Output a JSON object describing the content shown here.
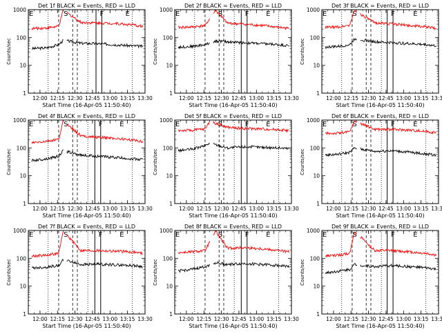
{
  "colors": {
    "events": "#000000",
    "lld": "#ff0000",
    "axis": "#000000",
    "background": "#ffffff"
  },
  "chart_data": [
    {
      "type": "line",
      "title": "Det 1f  BLACK = Events, RED = LLD",
      "xlabel": "Start Time (16-Apr-05 11:50:40)",
      "ylabel": "Counts/sec",
      "y_scale": "log",
      "ylim": [
        1,
        1000
      ],
      "xlim": [
        "11:50",
        "13:30"
      ],
      "x_ticks": [
        "12:00",
        "12:15",
        "12:30",
        "12:45",
        "13:00",
        "13:15",
        "13:30"
      ],
      "y_ticks": [
        "1",
        "10",
        "100",
        "1000"
      ],
      "markers": [
        {
          "label": "E",
          "time": "11:50"
        },
        {
          "label": "S",
          "time": "12:22"
        },
        {
          "label": "F",
          "time": "12:53"
        },
        {
          "label": "E",
          "time": "13:15"
        }
      ],
      "series": [
        {
          "color": "black",
          "x": [
            "11:53",
            "12:05",
            "12:16",
            "12:20",
            "12:35",
            "12:50",
            "13:05",
            "13:20",
            "13:28"
          ],
          "y": [
            40,
            42,
            55,
            80,
            62,
            60,
            55,
            50,
            48
          ]
        },
        {
          "color": "red",
          "x": [
            "11:53",
            "12:05",
            "12:16",
            "12:20",
            "12:35",
            "12:50",
            "13:05",
            "13:20",
            "13:28"
          ],
          "y": [
            210,
            220,
            250,
            950,
            350,
            330,
            320,
            280,
            250
          ]
        }
      ]
    },
    {
      "type": "line",
      "title": "Det 2f  BLACK = Events, RED = LLD",
      "xlabel": "Start Time (16-Apr-05 11:50:40)",
      "ylabel": "Counts/sec",
      "y_scale": "log",
      "ylim": [
        1,
        1000
      ],
      "xlim": [
        "11:50",
        "13:30"
      ],
      "x_ticks": [
        "12:00",
        "12:15",
        "12:30",
        "12:45",
        "13:00",
        "13:15",
        "13:30"
      ],
      "y_ticks": [
        "1",
        "10",
        "100",
        "1000"
      ],
      "markers": [
        {
          "label": "E",
          "time": "11:50"
        },
        {
          "label": "S",
          "time": "12:29"
        },
        {
          "label": "F",
          "time": "12:52"
        },
        {
          "label": "E",
          "time": "13:10"
        }
      ],
      "series": [
        {
          "color": "black",
          "x": [
            "11:53",
            "12:05",
            "12:16",
            "12:25",
            "12:35",
            "12:50",
            "13:05",
            "13:20",
            "13:28"
          ],
          "y": [
            45,
            48,
            55,
            75,
            70,
            65,
            60,
            55,
            50
          ]
        },
        {
          "color": "red",
          "x": [
            "11:53",
            "12:05",
            "12:16",
            "12:25",
            "12:35",
            "12:50",
            "13:05",
            "13:20",
            "13:28"
          ],
          "y": [
            230,
            240,
            270,
            950,
            330,
            300,
            270,
            230,
            210
          ]
        }
      ]
    },
    {
      "type": "line",
      "title": "Det 3f  BLACK = Events, RED = LLD",
      "xlabel": "Start Time (16-Apr-05 11:50:40)",
      "ylabel": "Counts/sec",
      "y_scale": "log",
      "ylim": [
        1,
        1000
      ],
      "xlim": [
        "11:50",
        "13:30"
      ],
      "x_ticks": [
        "12:00",
        "12:15",
        "12:30",
        "12:45",
        "13:00",
        "13:15",
        "13:30"
      ],
      "y_ticks": [
        "1",
        "10",
        "100",
        "1000"
      ],
      "markers": [
        {
          "label": "E",
          "time": "11:50"
        },
        {
          "label": "S",
          "time": "12:18"
        },
        {
          "label": "F",
          "time": "12:51"
        },
        {
          "label": "E",
          "time": "13:10"
        }
      ],
      "series": [
        {
          "color": "black",
          "x": [
            "11:53",
            "12:05",
            "12:14",
            "12:18",
            "12:35",
            "12:50",
            "13:05",
            "13:20",
            "13:28"
          ],
          "y": [
            45,
            48,
            55,
            90,
            70,
            65,
            60,
            55,
            50
          ]
        },
        {
          "color": "red",
          "x": [
            "11:53",
            "12:05",
            "12:14",
            "12:18",
            "12:35",
            "12:50",
            "13:05",
            "13:20",
            "13:28"
          ],
          "y": [
            230,
            240,
            280,
            950,
            340,
            310,
            270,
            240,
            210
          ]
        }
      ]
    },
    {
      "type": "line",
      "title": "Det 4f  BLACK = Events, RED = LLD",
      "xlabel": "Start Time (16-Apr-05 11:50:40)",
      "ylabel": "Counts/sec",
      "y_scale": "log",
      "ylim": [
        1,
        1000
      ],
      "xlim": [
        "11:50",
        "13:30"
      ],
      "x_ticks": [
        "12:00",
        "12:15",
        "12:30",
        "12:45",
        "13:00",
        "13:15",
        "13:30"
      ],
      "y_ticks": [
        "1",
        "10",
        "100",
        "1000"
      ],
      "markers": [
        {
          "label": "E",
          "time": "11:50"
        },
        {
          "label": "S",
          "time": "12:22"
        },
        {
          "label": "F",
          "time": "12:52"
        },
        {
          "label": "E",
          "time": "13:10"
        }
      ],
      "series": [
        {
          "color": "black",
          "x": [
            "11:53",
            "12:05",
            "12:16",
            "12:20",
            "12:35",
            "12:50",
            "13:05",
            "13:20",
            "13:28"
          ],
          "y": [
            35,
            40,
            50,
            80,
            55,
            50,
            45,
            40,
            38
          ]
        },
        {
          "color": "red",
          "x": [
            "11:53",
            "12:05",
            "12:16",
            "12:20",
            "12:35",
            "12:50",
            "13:05",
            "13:20",
            "13:28"
          ],
          "y": [
            150,
            170,
            200,
            950,
            270,
            240,
            220,
            190,
            170
          ]
        }
      ]
    },
    {
      "type": "line",
      "title": "Det 5f  BLACK = Events, RED = LLD",
      "xlabel": "Start Time (16-Apr-05 11:50:40)",
      "ylabel": "Counts/sec",
      "y_scale": "log",
      "ylim": [
        1,
        1000
      ],
      "xlim": [
        "11:50",
        "13:30"
      ],
      "x_ticks": [
        "12:00",
        "12:15",
        "12:30",
        "12:45",
        "13:00",
        "13:15",
        "13:30"
      ],
      "y_ticks": [
        "1",
        "10",
        "100",
        "1000"
      ],
      "markers": [
        {
          "label": "E",
          "time": "11:50"
        },
        {
          "label": "S",
          "time": "12:29"
        },
        {
          "label": "F",
          "time": "12:52"
        },
        {
          "label": "E",
          "time": "13:10"
        }
      ],
      "series": [
        {
          "color": "black",
          "x": [
            "11:53",
            "12:05",
            "12:16",
            "12:20",
            "12:35",
            "12:50",
            "13:05",
            "13:20",
            "13:28"
          ],
          "y": [
            80,
            90,
            120,
            150,
            100,
            110,
            105,
            100,
            95
          ]
        },
        {
          "color": "red",
          "x": [
            "11:53",
            "12:05",
            "12:16",
            "12:20",
            "12:35",
            "12:50",
            "13:05",
            "13:20",
            "13:28"
          ],
          "y": [
            420,
            430,
            480,
            900,
            550,
            500,
            480,
            450,
            420
          ]
        }
      ]
    },
    {
      "type": "line",
      "title": "Det 6f  BLACK = Events, RED = LLD",
      "xlabel": "Start Time (16-Apr-05 11:50:40)",
      "ylabel": "Counts/sec",
      "y_scale": "log",
      "ylim": [
        1,
        1000
      ],
      "xlim": [
        "11:50",
        "13:30"
      ],
      "x_ticks": [
        "12:00",
        "12:15",
        "12:30",
        "12:45",
        "13:00",
        "13:15",
        "13:30"
      ],
      "y_ticks": [
        "1",
        "10",
        "100",
        "1000"
      ],
      "markers": [
        {
          "label": "E",
          "time": "11:50"
        },
        {
          "label": "S",
          "time": "12:18"
        },
        {
          "label": "F",
          "time": "12:51"
        },
        {
          "label": "E",
          "time": "13:10"
        }
      ],
      "series": [
        {
          "color": "black",
          "x": [
            "11:53",
            "12:05",
            "12:14",
            "12:18",
            "12:35",
            "12:50",
            "13:05",
            "13:20",
            "13:28"
          ],
          "y": [
            55,
            60,
            70,
            100,
            75,
            80,
            70,
            60,
            55
          ]
        },
        {
          "color": "red",
          "x": [
            "11:53",
            "12:05",
            "12:14",
            "12:18",
            "12:35",
            "12:50",
            "13:05",
            "13:20",
            "13:28"
          ],
          "y": [
            330,
            340,
            380,
            950,
            470,
            460,
            440,
            390,
            350
          ]
        }
      ]
    },
    {
      "type": "line",
      "title": "Det 7f  BLACK = Events, RED = LLD",
      "xlabel": "Start Time (16-Apr-05 11:50:40)",
      "ylabel": "Counts/sec",
      "y_scale": "log",
      "ylim": [
        1,
        1000
      ],
      "xlim": [
        "11:50",
        "13:30"
      ],
      "x_ticks": [
        "12:00",
        "12:15",
        "12:30",
        "12:45",
        "13:00",
        "13:15",
        "13:30"
      ],
      "y_ticks": [
        "1",
        "10",
        "100",
        "1000"
      ],
      "markers": [
        {
          "label": "E",
          "time": "11:50"
        },
        {
          "label": "S",
          "time": "12:22"
        },
        {
          "label": "F",
          "time": "12:52"
        },
        {
          "label": "E",
          "time": "13:10"
        }
      ],
      "series": [
        {
          "color": "black",
          "x": [
            "11:53",
            "12:05",
            "12:16",
            "12:20",
            "12:35",
            "12:50",
            "13:05",
            "13:20",
            "13:28"
          ],
          "y": [
            45,
            48,
            55,
            90,
            60,
            62,
            58,
            55,
            50
          ]
        },
        {
          "color": "red",
          "x": [
            "11:53",
            "12:05",
            "12:16",
            "12:20",
            "12:35",
            "12:50",
            "13:05",
            "13:20",
            "13:28"
          ],
          "y": [
            120,
            130,
            150,
            950,
            190,
            190,
            180,
            170,
            150
          ]
        }
      ]
    },
    {
      "type": "line",
      "title": "Det 8f  BLACK = Events, RED = LLD",
      "xlabel": "Start Time (16-Apr-05 11:50:40)",
      "ylabel": "Counts/sec",
      "y_scale": "log",
      "ylim": [
        1,
        1000
      ],
      "xlim": [
        "11:50",
        "13:30"
      ],
      "x_ticks": [
        "12:00",
        "12:15",
        "12:30",
        "12:45",
        "13:00",
        "13:15",
        "13:30"
      ],
      "y_ticks": [
        "1",
        "10",
        "100",
        "1000"
      ],
      "markers": [
        {
          "label": "E",
          "time": "11:50"
        },
        {
          "label": "S",
          "time": "12:29"
        },
        {
          "label": "F",
          "time": "12:52"
        },
        {
          "label": "E",
          "time": "13:10"
        }
      ],
      "series": [
        {
          "color": "black",
          "x": [
            "11:53",
            "12:05",
            "12:16",
            "12:25",
            "12:35",
            "12:50",
            "13:05",
            "13:20",
            "13:28"
          ],
          "y": [
            35,
            40,
            50,
            70,
            60,
            65,
            60,
            55,
            50
          ]
        },
        {
          "color": "red",
          "x": [
            "11:53",
            "12:05",
            "12:16",
            "12:25",
            "12:35",
            "12:50",
            "13:05",
            "13:20",
            "13:28"
          ],
          "y": [
            160,
            170,
            190,
            950,
            230,
            240,
            220,
            190,
            170
          ]
        }
      ]
    },
    {
      "type": "line",
      "title": "Det 9f  BLACK = Events, RED = LLD",
      "xlabel": "Start Time (16-Apr-05 11:50:40)",
      "ylabel": "Counts/sec",
      "y_scale": "log",
      "ylim": [
        1,
        1000
      ],
      "xlim": [
        "11:50",
        "13:30"
      ],
      "x_ticks": [
        "12:00",
        "12:15",
        "12:30",
        "12:45",
        "13:00",
        "13:15",
        "13:30"
      ],
      "y_ticks": [
        "1",
        "10",
        "100",
        "1000"
      ],
      "markers": [
        {
          "label": "E",
          "time": "11:50"
        },
        {
          "label": "S",
          "time": "12:18"
        },
        {
          "label": "F",
          "time": "12:51"
        },
        {
          "label": "E",
          "time": "13:10"
        }
      ],
      "series": [
        {
          "color": "black",
          "x": [
            "11:53",
            "12:05",
            "12:14",
            "12:18",
            "12:35",
            "12:50",
            "13:05",
            "13:20",
            "13:28"
          ],
          "y": [
            30,
            35,
            40,
            60,
            50,
            55,
            50,
            45,
            40
          ]
        },
        {
          "color": "red",
          "x": [
            "11:53",
            "12:05",
            "12:14",
            "12:18",
            "12:35",
            "12:50",
            "13:05",
            "13:20",
            "13:28"
          ],
          "y": [
            120,
            130,
            150,
            950,
            190,
            190,
            170,
            150,
            130
          ]
        }
      ]
    }
  ]
}
